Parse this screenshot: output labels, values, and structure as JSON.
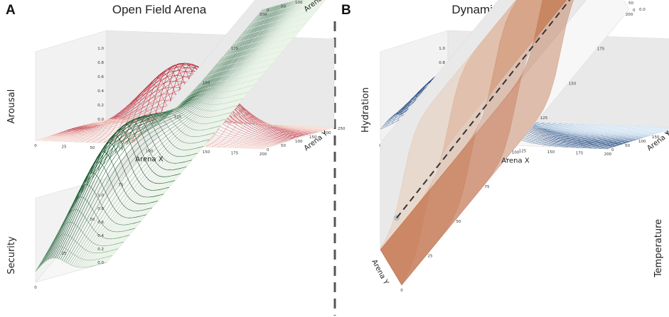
{
  "figure": {
    "divider_color": "#555555"
  },
  "panels": {
    "a": {
      "letter": "A",
      "title": "Open Field Arena"
    },
    "b": {
      "letter": "B",
      "title": "Dynamic Arena"
    }
  },
  "chart_data": [
    {
      "id": "arousal",
      "type": "surface",
      "title": "",
      "zlabel": "Arousal",
      "xlabel": "Arena X",
      "ylabel": "Arena Y",
      "x_ticks": [
        "0",
        "25",
        "50",
        "75",
        "100",
        "125",
        "150",
        "175",
        "200"
      ],
      "y_ticks": [
        "0",
        "50",
        "100",
        "150",
        "200",
        "250"
      ],
      "z_ticks": [
        "0.0",
        "0.2",
        "0.4",
        "0.6",
        "0.8",
        "1.0"
      ],
      "xlim": [
        0,
        200
      ],
      "ylim": [
        0,
        250
      ],
      "zlim": [
        0,
        1
      ],
      "surface": {
        "kind": "gaussian",
        "center_x": 100,
        "center_y": 125,
        "sigma_x": 35,
        "sigma_y": 45,
        "peak": 1.0
      },
      "color_low": "#fde3d8",
      "color_high": "#b2182b"
    },
    {
      "id": "security",
      "type": "surface",
      "title": "",
      "zlabel": "Security",
      "xlabel": "Arena X",
      "ylabel": "Arena Y",
      "x_ticks": [
        "0",
        "25",
        "50",
        "75",
        "100",
        "125",
        "150",
        "175",
        "200"
      ],
      "y_ticks": [
        "0",
        "50",
        "100",
        "150",
        "200",
        "250"
      ],
      "z_ticks": [
        "0.0",
        "0.2",
        "0.4",
        "0.6",
        "0.8",
        "1.0"
      ],
      "xlim": [
        0,
        200
      ],
      "ylim": [
        0,
        250
      ],
      "zlim": [
        0,
        1
      ],
      "surface": {
        "kind": "gaussian",
        "center_x": 55,
        "center_y": 55,
        "sigma_x": 35,
        "sigma_y": 50,
        "peak": 1.0
      },
      "color_low": "#d9f0d3",
      "color_high": "#00441b"
    },
    {
      "id": "hydration",
      "type": "surface",
      "title": "",
      "zlabel": "Hydration",
      "xlabel": "Arena X",
      "ylabel": "Arena Y",
      "x_ticks": [
        "0",
        "25",
        "50",
        "75",
        "100",
        "125",
        "150",
        "175",
        "200"
      ],
      "y_ticks": [
        "0",
        "50",
        "100",
        "150",
        "200",
        "250"
      ],
      "z_ticks": [
        "0.0",
        "0.2",
        "0.4",
        "0.6",
        "0.8",
        "1.0"
      ],
      "xlim": [
        0,
        200
      ],
      "ylim": [
        0,
        250
      ],
      "zlim": [
        0,
        1
      ],
      "surface": {
        "kind": "gaussian",
        "center_x": 55,
        "center_y": 55,
        "sigma_x": 35,
        "sigma_y": 50,
        "peak": 1.0
      },
      "color_low": "#d6e8f7",
      "color_high": "#08306b"
    },
    {
      "id": "temperature",
      "type": "surface",
      "title": "",
      "zlabel": "Temperature",
      "xlabel": "Arena X",
      "ylabel": "Arena Y",
      "x_ticks": [
        "0",
        "25",
        "50",
        "75",
        "100",
        "125",
        "150",
        "175",
        "200"
      ],
      "y_ticks": [
        "0",
        "50",
        "100",
        "150",
        "200",
        "250"
      ],
      "z_ticks": [
        "0.0",
        "0.2",
        "0.4",
        "0.6",
        "0.8",
        "1.0"
      ],
      "xlim": [
        0,
        200
      ],
      "ylim": [
        0,
        250
      ],
      "zlim": [
        0,
        1
      ],
      "surface": {
        "kind": "sigmoid_steps",
        "centers": [
          20,
          60,
          100,
          140
        ],
        "steepness": 0.2,
        "peak": 1.0
      },
      "color_low": "#fde0c5",
      "color_high": "#a63603",
      "arrow": {
        "from_x": 5,
        "to_x": 170,
        "y": 125,
        "z": 0.5,
        "color": "#333333",
        "start_dot_color": "#bdbdbd"
      }
    }
  ]
}
